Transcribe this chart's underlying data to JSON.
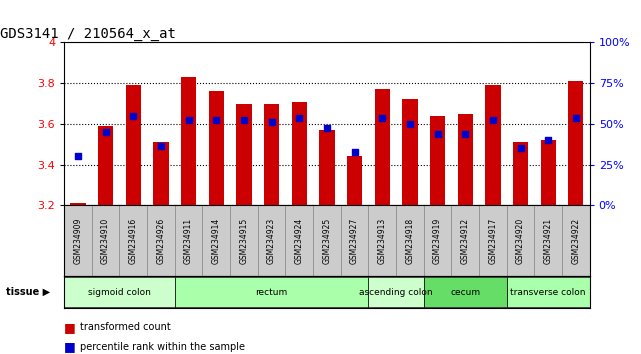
{
  "title": "GDS3141 / 210564_x_at",
  "samples": [
    "GSM234909",
    "GSM234910",
    "GSM234916",
    "GSM234926",
    "GSM234911",
    "GSM234914",
    "GSM234915",
    "GSM234923",
    "GSM234924",
    "GSM234925",
    "GSM234927",
    "GSM234913",
    "GSM234918",
    "GSM234919",
    "GSM234912",
    "GSM234917",
    "GSM234920",
    "GSM234921",
    "GSM234922"
  ],
  "transformed_count": [
    3.21,
    3.59,
    3.79,
    3.51,
    3.83,
    3.76,
    3.7,
    3.7,
    3.71,
    3.57,
    3.44,
    3.77,
    3.72,
    3.64,
    3.65,
    3.79,
    3.51,
    3.52,
    3.81
  ],
  "percentile_rank": [
    3.44,
    3.56,
    3.64,
    3.49,
    3.62,
    3.62,
    3.62,
    3.61,
    3.63,
    3.58,
    3.46,
    3.63,
    3.6,
    3.55,
    3.55,
    3.62,
    3.48,
    3.52,
    3.63
  ],
  "ymin": 3.2,
  "ymax": 4.0,
  "yticks_left": [
    3.2,
    3.4,
    3.6,
    3.8,
    4.0
  ],
  "ytick_labels_left": [
    "3.2",
    "3.4",
    "3.6",
    "3.8",
    "4"
  ],
  "right_tick_positions": [
    3.2,
    3.4,
    3.6,
    3.8,
    4.0
  ],
  "right_tick_labels": [
    "0%",
    "25%",
    "50%",
    "75%",
    "100%"
  ],
  "bar_color": "#cc0000",
  "percentile_color": "#0000cc",
  "tissue_groups": [
    {
      "label": "sigmoid colon",
      "start": 0,
      "end": 4,
      "color": "#ccffcc"
    },
    {
      "label": "rectum",
      "start": 4,
      "end": 11,
      "color": "#aaffaa"
    },
    {
      "label": "ascending colon",
      "start": 11,
      "end": 13,
      "color": "#ccffcc"
    },
    {
      "label": "cecum",
      "start": 13,
      "end": 16,
      "color": "#66dd66"
    },
    {
      "label": "transverse colon",
      "start": 16,
      "end": 19,
      "color": "#aaffaa"
    }
  ],
  "bar_width": 0.55,
  "sample_box_color": "#cccccc",
  "sample_box_edgecolor": "#888888"
}
